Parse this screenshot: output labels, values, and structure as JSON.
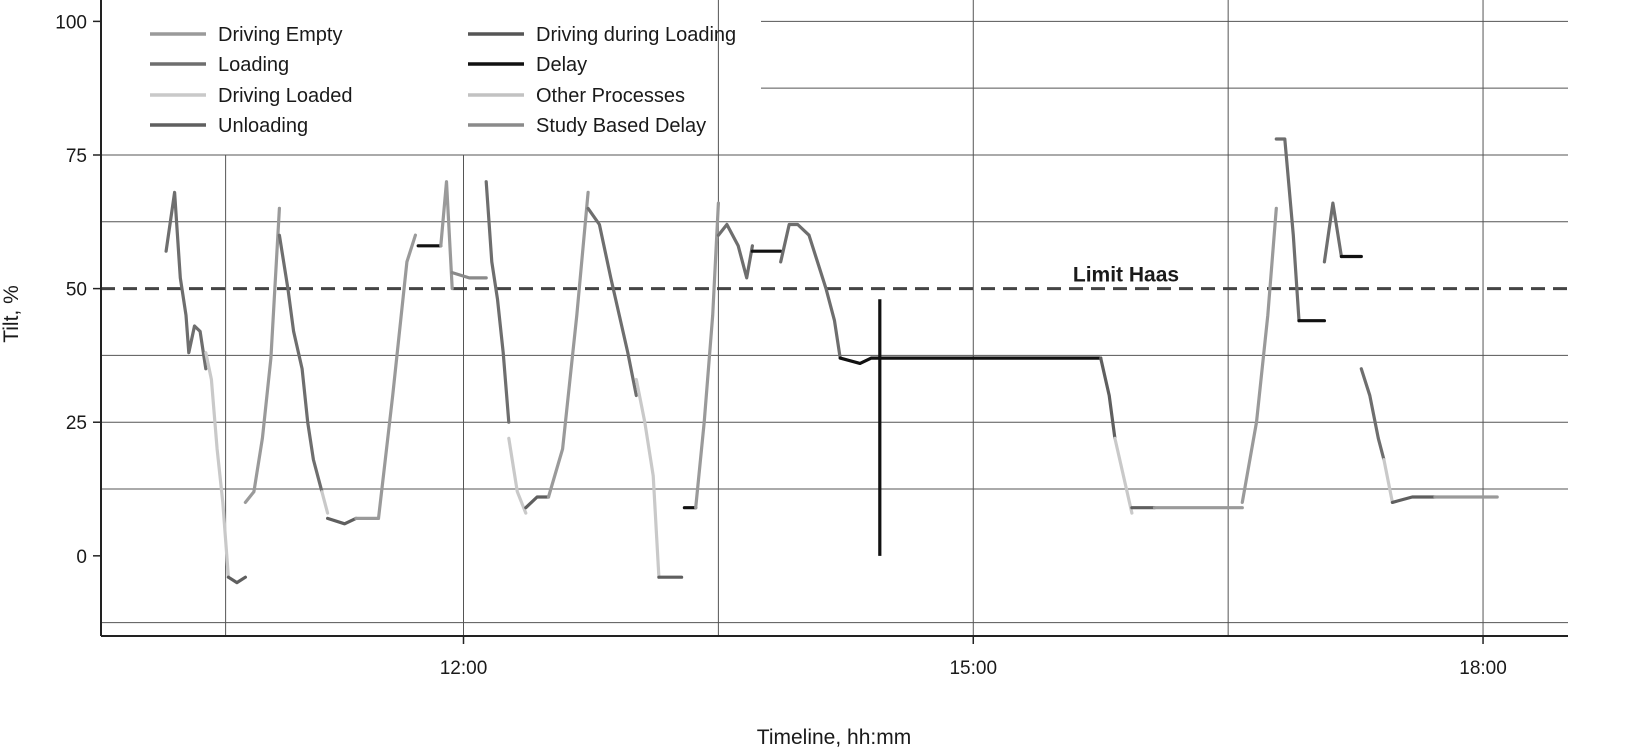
{
  "chart_data": {
    "type": "line",
    "title": "",
    "xlabel": "Timeline, hh:mm",
    "ylabel": "Tilt, %",
    "xlim": [
      "09:52",
      "18:30"
    ],
    "ylim": [
      -15,
      104
    ],
    "x_ticks": [
      "12:00",
      "15:00",
      "18:00"
    ],
    "y_ticks": [
      0,
      25,
      50,
      75,
      100
    ],
    "grid": true,
    "legend_position": "top-left",
    "colors": {
      "Driving Empty": "#9a9a9a",
      "Loading": "#6e6e6e",
      "Driving during Loading": "#555555",
      "Driving Loaded": "#c9c9c9",
      "Unloading": "#5f5f5f",
      "Delay": "#111111",
      "Other Processes": "#c2c2c2",
      "Study Based Delay": "#8a8a8a"
    },
    "legend": [
      "Driving Empty",
      "Driving during Loading",
      "Loading",
      "Delay",
      "Driving Loaded",
      "Other Processes",
      "Unloading",
      "Study Based Delay"
    ],
    "reference_line": {
      "label": "Limit Haas",
      "y": 50,
      "style": "dashed"
    },
    "series": [
      {
        "name": "Loading",
        "points": [
          [
            "10:15",
            57
          ],
          [
            "10:18",
            68
          ],
          [
            "10:20",
            52
          ],
          [
            "10:22",
            45
          ],
          [
            "10:23",
            38
          ],
          [
            "10:25",
            43
          ],
          [
            "10:27",
            42
          ],
          [
            "10:29",
            35
          ]
        ]
      },
      {
        "name": "Driving Loaded",
        "points": [
          [
            "10:29",
            38
          ],
          [
            "10:31",
            33
          ],
          [
            "10:33",
            20
          ],
          [
            "10:35",
            10
          ],
          [
            "10:37",
            -4
          ]
        ]
      },
      {
        "name": "Unloading",
        "points": [
          [
            "10:37",
            -4
          ],
          [
            "10:40",
            -5
          ],
          [
            "10:43",
            -4
          ]
        ]
      },
      {
        "name": "Driving Empty",
        "points": [
          [
            "10:43",
            10
          ],
          [
            "10:46",
            12
          ],
          [
            "10:49",
            22
          ],
          [
            "10:52",
            37
          ],
          [
            "10:55",
            65
          ]
        ]
      },
      {
        "name": "Loading",
        "points": [
          [
            "10:55",
            60
          ],
          [
            "10:58",
            50
          ],
          [
            "11:00",
            42
          ],
          [
            "11:03",
            35
          ],
          [
            "11:05",
            25
          ],
          [
            "11:07",
            18
          ],
          [
            "11:10",
            12
          ]
        ]
      },
      {
        "name": "Driving Loaded",
        "points": [
          [
            "11:10",
            12
          ],
          [
            "11:12",
            8
          ]
        ]
      },
      {
        "name": "Unloading",
        "points": [
          [
            "11:12",
            7
          ],
          [
            "11:18",
            6
          ],
          [
            "11:22",
            7
          ]
        ]
      },
      {
        "name": "Driving Empty",
        "points": [
          [
            "11:22",
            7
          ],
          [
            "11:30",
            7
          ],
          [
            "11:35",
            30
          ],
          [
            "11:40",
            55
          ],
          [
            "11:43",
            60
          ]
        ]
      },
      {
        "name": "Delay",
        "points": [
          [
            "11:44",
            58
          ],
          [
            "11:48",
            58
          ],
          [
            "11:52",
            58
          ]
        ]
      },
      {
        "name": "Driving Empty",
        "points": [
          [
            "11:52",
            58
          ],
          [
            "11:54",
            70
          ],
          [
            "11:56",
            50
          ]
        ]
      },
      {
        "name": "Study Based Delay",
        "points": [
          [
            "11:56",
            53
          ],
          [
            "12:02",
            52
          ],
          [
            "12:08",
            52
          ]
        ]
      },
      {
        "name": "Loading",
        "points": [
          [
            "12:08",
            70
          ],
          [
            "12:10",
            55
          ],
          [
            "12:12",
            48
          ],
          [
            "12:14",
            38
          ],
          [
            "12:16",
            25
          ]
        ]
      },
      {
        "name": "Driving Loaded",
        "points": [
          [
            "12:16",
            22
          ],
          [
            "12:19",
            12
          ],
          [
            "12:22",
            8
          ]
        ]
      },
      {
        "name": "Unloading",
        "points": [
          [
            "12:22",
            9
          ],
          [
            "12:26",
            11
          ],
          [
            "12:30",
            11
          ]
        ]
      },
      {
        "name": "Driving Empty",
        "points": [
          [
            "12:30",
            11
          ],
          [
            "12:35",
            20
          ],
          [
            "12:40",
            45
          ],
          [
            "12:44",
            68
          ]
        ]
      },
      {
        "name": "Loading",
        "points": [
          [
            "12:44",
            65
          ],
          [
            "12:48",
            62
          ],
          [
            "12:52",
            52
          ],
          [
            "12:55",
            45
          ],
          [
            "12:58",
            38
          ],
          [
            "13:01",
            30
          ]
        ]
      },
      {
        "name": "Driving Loaded",
        "points": [
          [
            "13:01",
            33
          ],
          [
            "13:04",
            25
          ],
          [
            "13:07",
            15
          ],
          [
            "13:09",
            -4
          ]
        ]
      },
      {
        "name": "Unloading",
        "points": [
          [
            "13:09",
            -4
          ],
          [
            "13:13",
            -4
          ],
          [
            "13:17",
            -4
          ]
        ]
      },
      {
        "name": "Delay",
        "points": [
          [
            "13:18",
            9
          ],
          [
            "13:22",
            9
          ]
        ]
      },
      {
        "name": "Driving Empty",
        "points": [
          [
            "13:22",
            9
          ],
          [
            "13:25",
            25
          ],
          [
            "13:28",
            45
          ],
          [
            "13:30",
            66
          ]
        ]
      },
      {
        "name": "Loading",
        "points": [
          [
            "13:30",
            60
          ],
          [
            "13:33",
            62
          ],
          [
            "13:37",
            58
          ],
          [
            "13:40",
            52
          ],
          [
            "13:42",
            58
          ]
        ]
      },
      {
        "name": "Delay",
        "points": [
          [
            "13:42",
            57
          ],
          [
            "13:48",
            57
          ],
          [
            "13:52",
            57
          ]
        ]
      },
      {
        "name": "Loading",
        "points": [
          [
            "13:52",
            55
          ],
          [
            "13:55",
            62
          ],
          [
            "13:58",
            62
          ],
          [
            "14:02",
            60
          ],
          [
            "14:05",
            55
          ],
          [
            "14:08",
            50
          ],
          [
            "14:11",
            44
          ],
          [
            "14:13",
            37
          ]
        ]
      },
      {
        "name": "Delay",
        "points": [
          [
            "14:13",
            37
          ],
          [
            "14:20",
            36
          ],
          [
            "14:24",
            37
          ],
          [
            "14:30",
            37
          ],
          [
            "15:00",
            37
          ],
          [
            "15:30",
            37
          ],
          [
            "15:45",
            37
          ]
        ]
      },
      {
        "name": "Unloading",
        "points": [
          [
            "15:45",
            37
          ],
          [
            "15:48",
            30
          ],
          [
            "15:50",
            22
          ]
        ]
      },
      {
        "name": "Driving Loaded",
        "points": [
          [
            "15:50",
            22
          ],
          [
            "15:53",
            15
          ],
          [
            "15:56",
            8
          ]
        ]
      },
      {
        "name": "Unloading",
        "points": [
          [
            "15:56",
            9
          ],
          [
            "16:00",
            9
          ],
          [
            "16:04",
            9
          ]
        ]
      },
      {
        "name": "Driving Empty",
        "points": [
          [
            "16:04",
            9
          ],
          [
            "16:20",
            9
          ],
          [
            "16:35",
            9
          ]
        ]
      },
      {
        "name": "Driving Empty",
        "points": [
          [
            "16:35",
            10
          ],
          [
            "16:40",
            25
          ],
          [
            "16:44",
            45
          ],
          [
            "16:47",
            65
          ]
        ]
      },
      {
        "name": "Loading",
        "points": [
          [
            "16:47",
            78
          ],
          [
            "16:50",
            78
          ],
          [
            "16:53",
            60
          ],
          [
            "16:55",
            44
          ]
        ]
      },
      {
        "name": "Delay",
        "points": [
          [
            "16:55",
            44
          ],
          [
            "17:00",
            44
          ],
          [
            "17:04",
            44
          ]
        ]
      },
      {
        "name": "Loading",
        "points": [
          [
            "17:04",
            55
          ],
          [
            "17:07",
            66
          ],
          [
            "17:10",
            56
          ]
        ]
      },
      {
        "name": "Delay",
        "points": [
          [
            "17:10",
            56
          ],
          [
            "17:14",
            56
          ],
          [
            "17:17",
            56
          ]
        ]
      },
      {
        "name": "Loading",
        "points": [
          [
            "17:17",
            35
          ],
          [
            "17:20",
            30
          ],
          [
            "17:23",
            22
          ],
          [
            "17:25",
            18
          ]
        ]
      },
      {
        "name": "Driving Loaded",
        "points": [
          [
            "17:25",
            18
          ],
          [
            "17:28",
            10
          ]
        ]
      },
      {
        "name": "Unloading",
        "points": [
          [
            "17:28",
            10
          ],
          [
            "17:35",
            11
          ],
          [
            "17:43",
            11
          ]
        ]
      },
      {
        "name": "Driving Empty",
        "points": [
          [
            "17:43",
            11
          ],
          [
            "18:00",
            11
          ],
          [
            "18:05",
            11
          ]
        ]
      }
    ],
    "spikes": [
      {
        "name": "Delay",
        "x": "14:27",
        "ymin": 0,
        "ymax": 48
      }
    ]
  }
}
